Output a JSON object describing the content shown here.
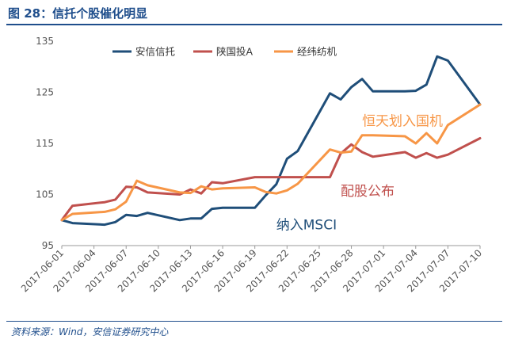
{
  "title": "图 28：信托个股催化明显",
  "source": "资料来源：Wind，安信证券研究中心",
  "chart_data": {
    "type": "line",
    "title": "",
    "xlabel": "",
    "ylabel": "",
    "ylim": [
      95,
      135
    ],
    "yticks": [
      95,
      105,
      115,
      125,
      135
    ],
    "xtick_labels": [
      "2017-06-01",
      "2017-06-04",
      "2017-06-07",
      "2017-06-10",
      "2017-06-13",
      "2017-06-16",
      "2017-06-19",
      "2017-06-22",
      "2017-06-25",
      "2017-06-28",
      "2017-07-01",
      "2017-07-04",
      "2017-07-07",
      "2017-07-10"
    ],
    "x": [
      "2017-06-01",
      "2017-06-02",
      "2017-06-05",
      "2017-06-06",
      "2017-06-07",
      "2017-06-08",
      "2017-06-09",
      "2017-06-12",
      "2017-06-13",
      "2017-06-14",
      "2017-06-15",
      "2017-06-16",
      "2017-06-19",
      "2017-06-20",
      "2017-06-21",
      "2017-06-22",
      "2017-06-23",
      "2017-06-26",
      "2017-06-27",
      "2017-06-28",
      "2017-06-29",
      "2017-06-30",
      "2017-07-03",
      "2017-07-04",
      "2017-07-05",
      "2017-07-06",
      "2017-07-07",
      "2017-07-10"
    ],
    "grid": false,
    "legend_position": "top",
    "series": [
      {
        "name": "安信信托",
        "color": "#1F4E79",
        "values": [
          100,
          99.4,
          99.1,
          99.6,
          101,
          100.8,
          101.4,
          100,
          100.3,
          100.3,
          102.2,
          102.4,
          102.4,
          104.8,
          107,
          112,
          113.5,
          124.8,
          123.6,
          126,
          127.6,
          125.2,
          125.2,
          125.3,
          126.5,
          132,
          131.2,
          122.6
        ]
      },
      {
        "name": "陕国投A",
        "color": "#C0504D",
        "values": [
          100,
          102.8,
          103.5,
          104,
          106.5,
          106.4,
          105.4,
          105,
          106,
          105.2,
          107.4,
          107.2,
          108.4,
          108.4,
          108.4,
          108.4,
          108.4,
          108.4,
          113,
          114.8,
          113.3,
          112.4,
          113.3,
          112.2,
          113.1,
          112.2,
          112.8,
          116
        ]
      },
      {
        "name": "经纬纺机",
        "color": "#F79646",
        "values": [
          100,
          101.2,
          101.6,
          102.1,
          103.6,
          107.7,
          106.8,
          105.4,
          105.3,
          106.6,
          106,
          106.2,
          106.4,
          105.5,
          105.2,
          105.8,
          107.1,
          113.8,
          113.2,
          113.4,
          116.6,
          116.6,
          116.4,
          115,
          117,
          115,
          118.6,
          122.6
        ]
      }
    ],
    "annotations": [
      {
        "text": "恒天划入国机",
        "color": "#F79646",
        "x": "2017-06-29",
        "y": 118.5
      },
      {
        "text": "配股公布",
        "color": "#C0504D",
        "x": "2017-06-27",
        "y": 104.8
      },
      {
        "text": "纳入MSCI",
        "color": "#1F4E79",
        "x": "2017-06-21",
        "y": 98.2
      }
    ]
  }
}
